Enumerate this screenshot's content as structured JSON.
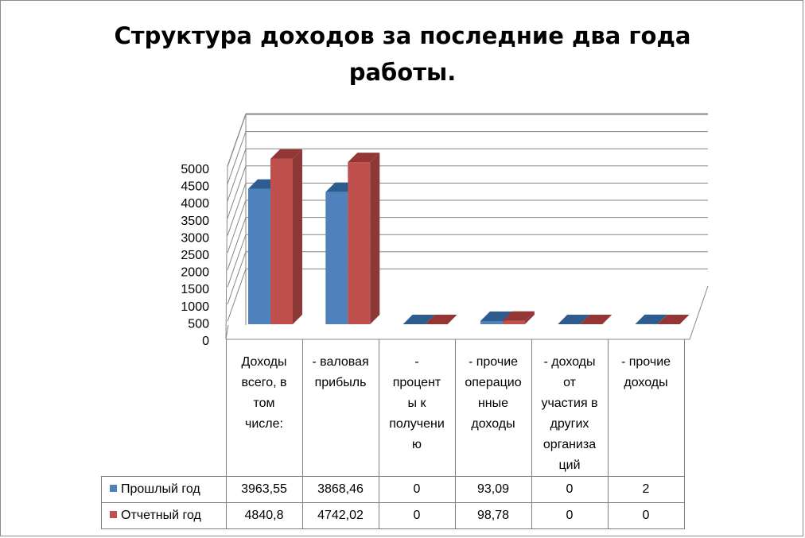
{
  "chart_data": {
    "type": "bar",
    "title": "Структура доходов за последние два года\nработы.",
    "categories": [
      "Доходы\nвсего, в\nтом\nчисле:",
      "- валовая\nприбыль",
      "-\nпроцент\nы к\nполучени\nю",
      "- прочие\nоперацио\nнные\nдоходы",
      "- доходы\nот\nучастия в\nдругих\nорганиза\nций",
      "- прочие\nдоходы"
    ],
    "series": [
      {
        "name": "Прошлый год",
        "values": [
          3963.55,
          3868.46,
          0,
          93.09,
          0,
          2
        ],
        "labels": [
          "3963,55",
          "3868,46",
          "0",
          "93,09",
          "0",
          "2"
        ],
        "color": "#4f81bd",
        "top_color": "#2f5c8f",
        "side_color": "#385d8a"
      },
      {
        "name": "Отчетный год",
        "values": [
          4840.8,
          4742.02,
          0,
          98.78,
          0,
          0
        ],
        "labels": [
          "4840,8",
          "4742,02",
          "0",
          "98,78",
          "0",
          "0"
        ],
        "color": "#c0504d",
        "top_color": "#943634",
        "side_color": "#8c3836"
      }
    ],
    "yticks": [
      "0",
      "500",
      "1000",
      "1500",
      "2000",
      "2500",
      "3000",
      "3500",
      "4000",
      "4500",
      "5000"
    ],
    "ylim": [
      0,
      5000
    ],
    "grid": true,
    "legend": "data-table",
    "style": "3d-clustered-column"
  }
}
